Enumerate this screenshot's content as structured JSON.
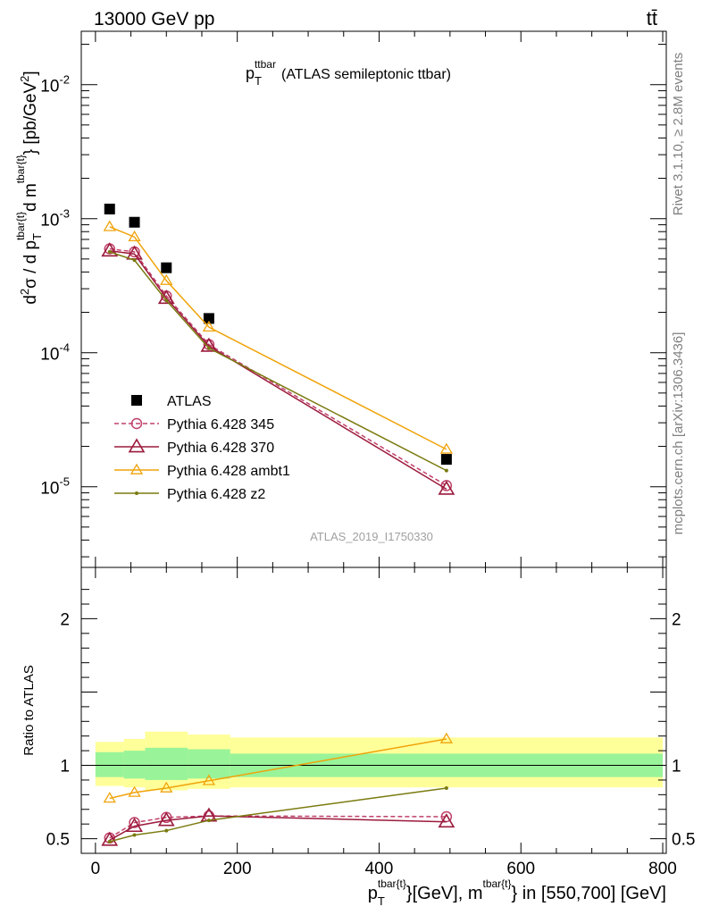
{
  "header": {
    "left": "13000 GeV pp",
    "right": "tt̄"
  },
  "side": {
    "rivet": "Rivet 3.1.10, ≥ 2.8M events",
    "mcplots": "mcplots.cern.ch [arXiv:1306.3436]"
  },
  "chart_data": [
    {
      "type": "line",
      "title": {
        "main": "p",
        "sub": "T",
        "sup": "ttbar",
        "rest": "(ATLAS semileptonic ttbar)"
      },
      "watermark": "ATLAS_2019_I1750330",
      "ylabel": "d²σ / d p_T^{tbar{t}}d m^{tbar{t}} [pb/GeV²]",
      "yscale": "log",
      "ylim": [
        2.5e-06,
        0.025
      ],
      "xlim": [
        -20,
        805
      ],
      "ytick_labels": [
        {
          "base": "10",
          "exp": "-5"
        },
        {
          "base": "10",
          "exp": "-4"
        },
        {
          "base": "10",
          "exp": "-3"
        },
        {
          "base": "10",
          "exp": "-2"
        }
      ],
      "legend_position": "lower-left",
      "series": [
        {
          "name": "ATLAS",
          "style": "data",
          "color": "#000000",
          "x": [
            20,
            55,
            100,
            160,
            495
          ],
          "y": [
            0.00118,
            0.00094,
            0.00043,
            0.00018,
            1.6e-05
          ]
        },
        {
          "name": "Pythia 6.428 345",
          "style": "circle-dashed",
          "color": "#c0406a",
          "x": [
            20,
            55,
            100,
            160,
            495
          ],
          "y": [
            0.000595,
            0.000565,
            0.000265,
            0.000115,
            1.02e-05
          ]
        },
        {
          "name": "Pythia 6.428 370",
          "style": "triangle",
          "color": "#9b1a3c",
          "x": [
            20,
            55,
            100,
            160,
            495
          ],
          "y": [
            0.000575,
            0.000545,
            0.000255,
            0.000112,
            9.6e-06
          ]
        },
        {
          "name": "Pythia 6.428 ambt1",
          "style": "triangle-small",
          "color": "#f0a30a",
          "x": [
            20,
            55,
            100,
            160,
            495
          ],
          "y": [
            0.00087,
            0.00073,
            0.000345,
            0.000155,
            1.9e-05
          ]
        },
        {
          "name": "Pythia 6.428 z2",
          "style": "dot",
          "color": "#7a7a10",
          "x": [
            20,
            55,
            100,
            160,
            495
          ],
          "y": [
            0.000565,
            0.00049,
            0.000245,
            0.000108,
            1.32e-05
          ]
        }
      ]
    },
    {
      "type": "line",
      "ylabel": "Ratio to ATLAS",
      "xlabel": "p_T^{tbar{t}}[GeV], m^{tbar{t}} in [550,700] [GeV]",
      "xlim": [
        -20,
        805
      ],
      "ylim": [
        0.4,
        2.35
      ],
      "xtick_labels": [
        "0",
        "200",
        "400",
        "600",
        "800"
      ],
      "ytick_labels": [
        "0.5",
        "1",
        "2"
      ],
      "bands": {
        "inner_color": "#99f399",
        "outer_color": "#ffff99",
        "bins": [
          {
            "x0": 0,
            "x1": 40,
            "inner": [
              0.92,
              1.09
            ],
            "outer": [
              0.86,
              1.16
            ]
          },
          {
            "x0": 40,
            "x1": 70,
            "inner": [
              0.91,
              1.1
            ],
            "outer": [
              0.85,
              1.18
            ]
          },
          {
            "x0": 70,
            "x1": 130,
            "inner": [
              0.9,
              1.12
            ],
            "outer": [
              0.83,
              1.23
            ]
          },
          {
            "x0": 130,
            "x1": 190,
            "inner": [
              0.91,
              1.11
            ],
            "outer": [
              0.84,
              1.21
            ]
          },
          {
            "x0": 190,
            "x1": 800,
            "inner": [
              0.92,
              1.08
            ],
            "outer": [
              0.85,
              1.19
            ]
          }
        ]
      },
      "series": [
        {
          "name": "Pythia 6.428 345",
          "style": "circle-dashed",
          "color": "#c0406a",
          "x": [
            20,
            55,
            100,
            160,
            495
          ],
          "y": [
            0.505,
            0.61,
            0.645,
            0.655,
            0.65
          ]
        },
        {
          "name": "Pythia 6.428 370",
          "style": "triangle",
          "color": "#9b1a3c",
          "x": [
            20,
            55,
            100,
            160,
            495
          ],
          "y": [
            0.49,
            0.585,
            0.625,
            0.655,
            0.615
          ]
        },
        {
          "name": "Pythia 6.428 ambt1",
          "style": "triangle-small",
          "color": "#f0a30a",
          "x": [
            20,
            55,
            100,
            160,
            495
          ],
          "y": [
            0.775,
            0.815,
            0.845,
            0.895,
            1.18
          ]
        },
        {
          "name": "Pythia 6.428 z2",
          "style": "dot",
          "color": "#7a7a10",
          "x": [
            20,
            55,
            100,
            160,
            495
          ],
          "y": [
            0.48,
            0.525,
            0.555,
            0.625,
            0.845
          ]
        }
      ]
    }
  ]
}
